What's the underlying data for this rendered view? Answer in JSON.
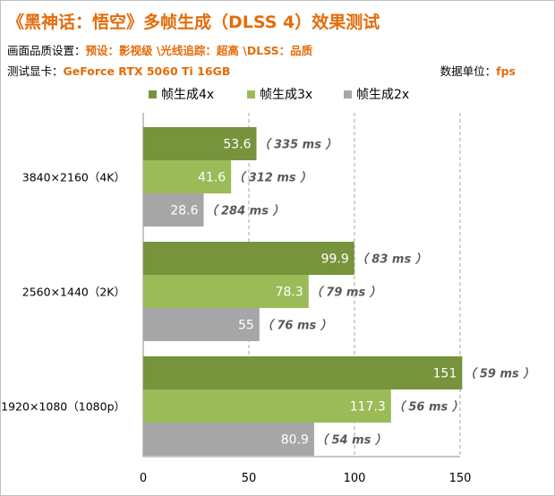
{
  "header": {
    "title": "《黑神话：悟空》多帧生成（DLSS 4）效果测试",
    "settings_label": "画面品质设置：",
    "settings_value": "预设：影视级 \\光线追踪：超高 \\DLSS：品质",
    "gpu_label": "测试显卡：",
    "gpu_value": "GeForce RTX 5060 Ti 16GB",
    "unit_label": "数据单位：",
    "unit_value": "fps"
  },
  "colors": {
    "fg4x": "#77933c",
    "fg3x": "#9bbb59",
    "fg2x": "#a6a6a6",
    "accent": "#e36c0a"
  },
  "chart_data": {
    "type": "bar",
    "orientation": "horizontal",
    "categories": [
      "3840×2160（4K）",
      "2560×1440（2K）",
      "1920×1080（1080p）"
    ],
    "series": [
      {
        "name": "帧生成4x",
        "values": [
          53.6,
          99.9,
          151
        ],
        "labels": [
          "53.6",
          "99.9",
          "151"
        ],
        "latency": [
          "（ 335 ms ）",
          "（ 83 ms ）",
          "（ 59 ms ）"
        ]
      },
      {
        "name": "帧生成3x",
        "values": [
          41.6,
          78.3,
          117.3
        ],
        "labels": [
          "41.6",
          "78.3",
          "117.3"
        ],
        "latency": [
          "（ 312 ms ）",
          "（ 79 ms ）",
          "（ 56 ms ）"
        ]
      },
      {
        "name": "帧生成2x",
        "values": [
          28.6,
          55,
          80.9
        ],
        "labels": [
          "28.6",
          "55",
          "80.9"
        ],
        "latency": [
          "（ 284 ms ）",
          "（ 76 ms ）",
          "（ 54 ms ）"
        ]
      }
    ],
    "xlim": [
      0,
      150
    ],
    "xticks": [
      "0",
      "50",
      "100",
      "150"
    ],
    "xtick_values": [
      0,
      50,
      100,
      150
    ],
    "grid": "vertical-dashed",
    "legend_position": "top"
  }
}
